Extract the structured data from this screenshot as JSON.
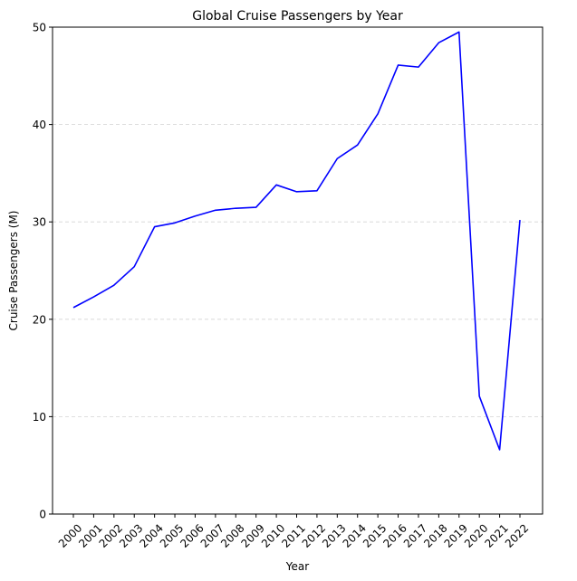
{
  "chart_data": {
    "type": "line",
    "title": "Global Cruise Passengers by Year",
    "xlabel": "Year",
    "ylabel": "Cruise Passengers (M)",
    "categories": [
      "2000",
      "2001",
      "2002",
      "2003",
      "2004",
      "2005",
      "2006",
      "2007",
      "2008",
      "2009",
      "2010",
      "2011",
      "2012",
      "2013",
      "2014",
      "2015",
      "2016",
      "2017",
      "2018",
      "2019",
      "2020",
      "2021",
      "2022"
    ],
    "series": [
      {
        "name": "Cruise Passengers",
        "color": "#0000ff",
        "values": [
          21.2,
          22.3,
          23.5,
          25.4,
          29.5,
          29.9,
          30.6,
          31.2,
          31.4,
          31.5,
          33.8,
          33.1,
          33.2,
          36.5,
          37.9,
          41.1,
          46.1,
          45.9,
          48.4,
          49.5,
          12.1,
          6.6,
          30.2
        ]
      }
    ],
    "ylim": [
      0,
      50
    ],
    "yticks": [
      0,
      10,
      20,
      30,
      40,
      50
    ],
    "ytick_labels": [
      "0",
      "10",
      "20",
      "30",
      "40",
      "50"
    ],
    "grid": "horizontal-dashed",
    "grid_color": "#d3d3d3"
  }
}
